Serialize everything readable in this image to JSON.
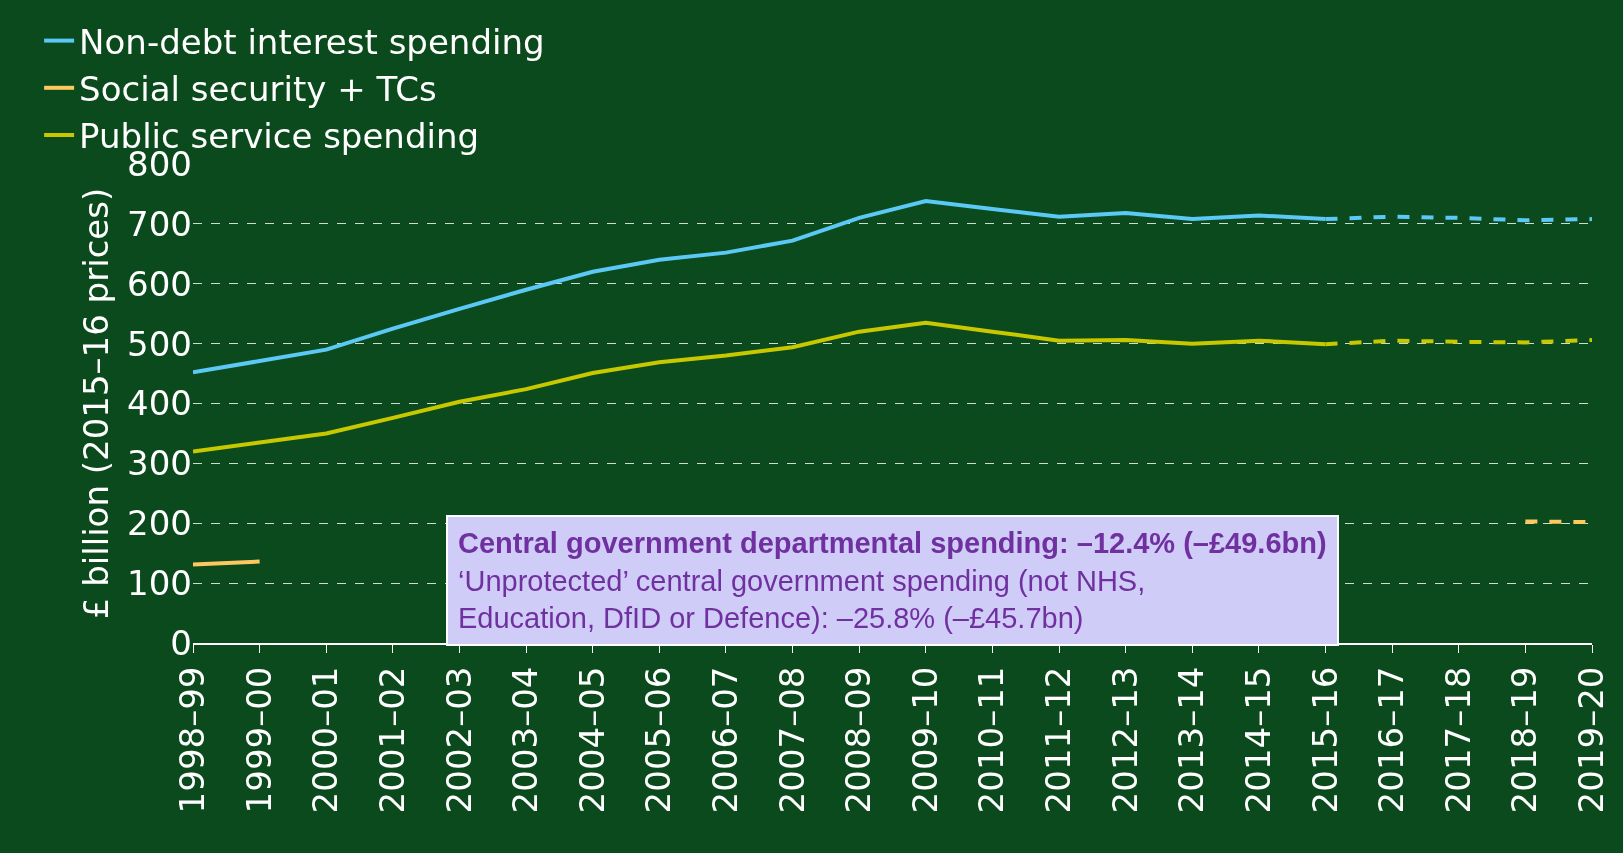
{
  "chart_data": {
    "type": "line",
    "ylabel": "£ billion (2015–16 prices)",
    "categories": [
      "1998–99",
      "1999–00",
      "2000–01",
      "2001–02",
      "2002–03",
      "2003–04",
      "2004–05",
      "2005–06",
      "2006–07",
      "2007–08",
      "2008–09",
      "2009–10",
      "2010–11",
      "2011–12",
      "2012–13",
      "2013–14",
      "2014–15",
      "2015–16",
      "2016–17",
      "2017–18",
      "2018–19",
      "2019–20"
    ],
    "series": [
      {
        "name": "Non-debt interest spending",
        "color": "#5bc8f5",
        "line_style": "solid",
        "values": [
          452,
          471,
          490,
          525,
          558,
          590,
          620,
          640,
          652,
          672,
          710,
          738,
          725,
          712,
          718,
          708,
          714,
          708,
          null,
          null,
          null,
          null
        ]
      },
      {
        "name": "Social security + TCs",
        "color": "#fcc860",
        "line_style": "solid",
        "values": [
          131,
          136,
          null,
          null,
          null,
          null,
          null,
          null,
          null,
          null,
          null,
          null,
          null,
          null,
          null,
          null,
          null,
          null,
          null,
          null,
          null,
          null
        ]
      },
      {
        "name": "Public service spending",
        "color": "#c8c800",
        "line_style": "solid",
        "values": [
          320,
          335,
          350,
          376,
          403,
          424,
          451,
          469,
          480,
          494,
          520,
          535,
          520,
          505,
          506,
          500,
          505,
          499,
          null,
          null,
          null,
          null
        ]
      },
      {
        "color": "#5bc8f5",
        "line_style": "dashed",
        "values": [
          null,
          null,
          null,
          null,
          null,
          null,
          null,
          null,
          null,
          null,
          null,
          null,
          null,
          null,
          null,
          null,
          null,
          708,
          712,
          710,
          706,
          708
        ]
      },
      {
        "color": "#fcc860",
        "line_style": "dashed",
        "values": [
          null,
          null,
          null,
          null,
          null,
          null,
          null,
          null,
          null,
          null,
          null,
          null,
          null,
          null,
          null,
          null,
          null,
          null,
          null,
          null,
          203,
          202
        ]
      },
      {
        "color": "#c8c800",
        "line_style": "dashed",
        "values": [
          null,
          null,
          null,
          null,
          null,
          null,
          null,
          null,
          null,
          null,
          null,
          null,
          null,
          null,
          null,
          null,
          null,
          499,
          505,
          503,
          502,
          506
        ]
      }
    ],
    "ylim": [
      0,
      800
    ],
    "yticks": [
      0,
      100,
      200,
      300,
      400,
      500,
      600,
      700,
      800
    ],
    "grid": "y",
    "legend": "top",
    "marker": "none",
    "annotations": [
      "Central government departmental spending: –12.4% (–£49.6bn)",
      "‘Unprotected’ central government spending (not NHS, Education, DfID or Defence): –25.8% (–£45.7bn)"
    ]
  }
}
